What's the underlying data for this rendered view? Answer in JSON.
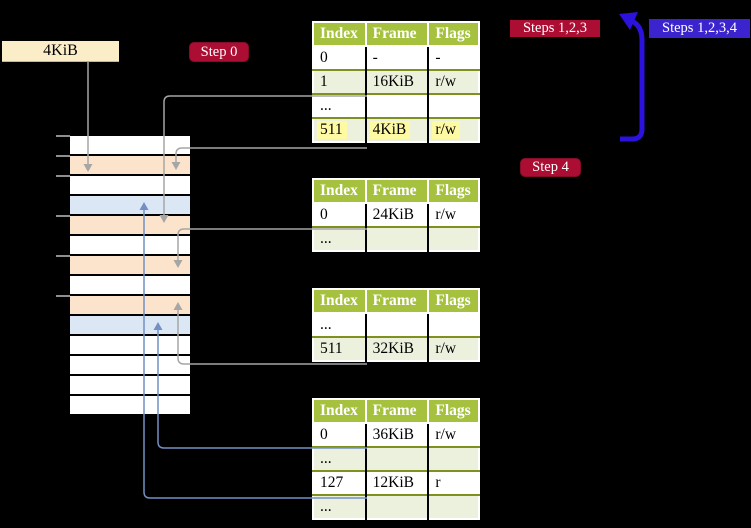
{
  "memory_label": "4KiB",
  "badges": {
    "step0": "Step 0",
    "steps123": "Steps 1,2,3",
    "steps1234": "Steps 1,2,3,4",
    "step4": "Step 4"
  },
  "memory_strip": {
    "rows": [
      "white",
      "wheat",
      "white",
      "blue",
      "wheat",
      "white",
      "wheat",
      "white",
      "wheat",
      "blue",
      "white",
      "white",
      "white",
      "white"
    ],
    "tick_offsets": [
      0,
      20,
      40,
      80,
      120,
      160
    ]
  },
  "page_tables": [
    {
      "id": "table-l4",
      "headers": [
        "Index",
        "Frame",
        "Flags"
      ],
      "rows": [
        {
          "cells": [
            "0",
            "-",
            "-"
          ],
          "highlight": false
        },
        {
          "cells": [
            "1",
            "16KiB",
            "r/w"
          ],
          "highlight": false
        },
        {
          "cells": [
            "...",
            "",
            ""
          ],
          "highlight": false
        },
        {
          "cells": [
            "511",
            "4KiB",
            "r/w"
          ],
          "highlight": true
        }
      ]
    },
    {
      "id": "table-l3",
      "headers": [
        "Index",
        "Frame",
        "Flags"
      ],
      "rows": [
        {
          "cells": [
            "0",
            "24KiB",
            "r/w"
          ],
          "highlight": false
        },
        {
          "cells": [
            "...",
            "",
            ""
          ],
          "highlight": false
        }
      ]
    },
    {
      "id": "table-l2",
      "headers": [
        "Index",
        "Frame",
        "Flags"
      ],
      "rows": [
        {
          "cells": [
            "...",
            "",
            ""
          ],
          "highlight": false
        },
        {
          "cells": [
            "511",
            "32KiB",
            "r/w"
          ],
          "highlight": false
        }
      ]
    },
    {
      "id": "table-l1",
      "headers": [
        "Index",
        "Frame",
        "Flags"
      ],
      "rows": [
        {
          "cells": [
            "0",
            "36KiB",
            "r/w"
          ],
          "highlight": false
        },
        {
          "cells": [
            "...",
            "",
            ""
          ],
          "highlight": false
        },
        {
          "cells": [
            "127",
            "12KiB",
            "r"
          ],
          "highlight": false
        },
        {
          "cells": [
            "...",
            "",
            ""
          ],
          "highlight": false
        }
      ]
    }
  ],
  "connections": [
    {
      "from": "memory-label",
      "to": "strip-row-2",
      "color": "gray"
    },
    {
      "from": "table-l4-row-1",
      "to": "strip-row-5",
      "color": "gray"
    },
    {
      "from": "table-l4-row-511",
      "to": "strip-row-2",
      "color": "gray"
    },
    {
      "from": "table-l3-row-0",
      "to": "strip-row-7",
      "color": "gray"
    },
    {
      "from": "table-l2-row-511",
      "to": "strip-row-9",
      "color": "gray"
    },
    {
      "from": "table-l1-row-0",
      "to": "strip-row-10",
      "color": "blue"
    },
    {
      "from": "table-l1-row-127",
      "to": "strip-row-4",
      "color": "blue"
    }
  ],
  "colors": {
    "background": "#000000",
    "table_header": "#A5C13E",
    "table_row_alt": "#EBF1DD",
    "row_separator": "#7F901F",
    "crimson_badge": "#AC0D33",
    "indigo_badge": "#3B24CE",
    "arrow_indigo": "#2B12DC",
    "strip_wheat": "#FCE4CC",
    "strip_blue": "#DCE7F5",
    "memory_label_bg": "#FAEDC8",
    "gray_connector": "#A6A6A6",
    "blue_connector": "#7290C4",
    "highlight_yellow": "#FEF9A3"
  }
}
